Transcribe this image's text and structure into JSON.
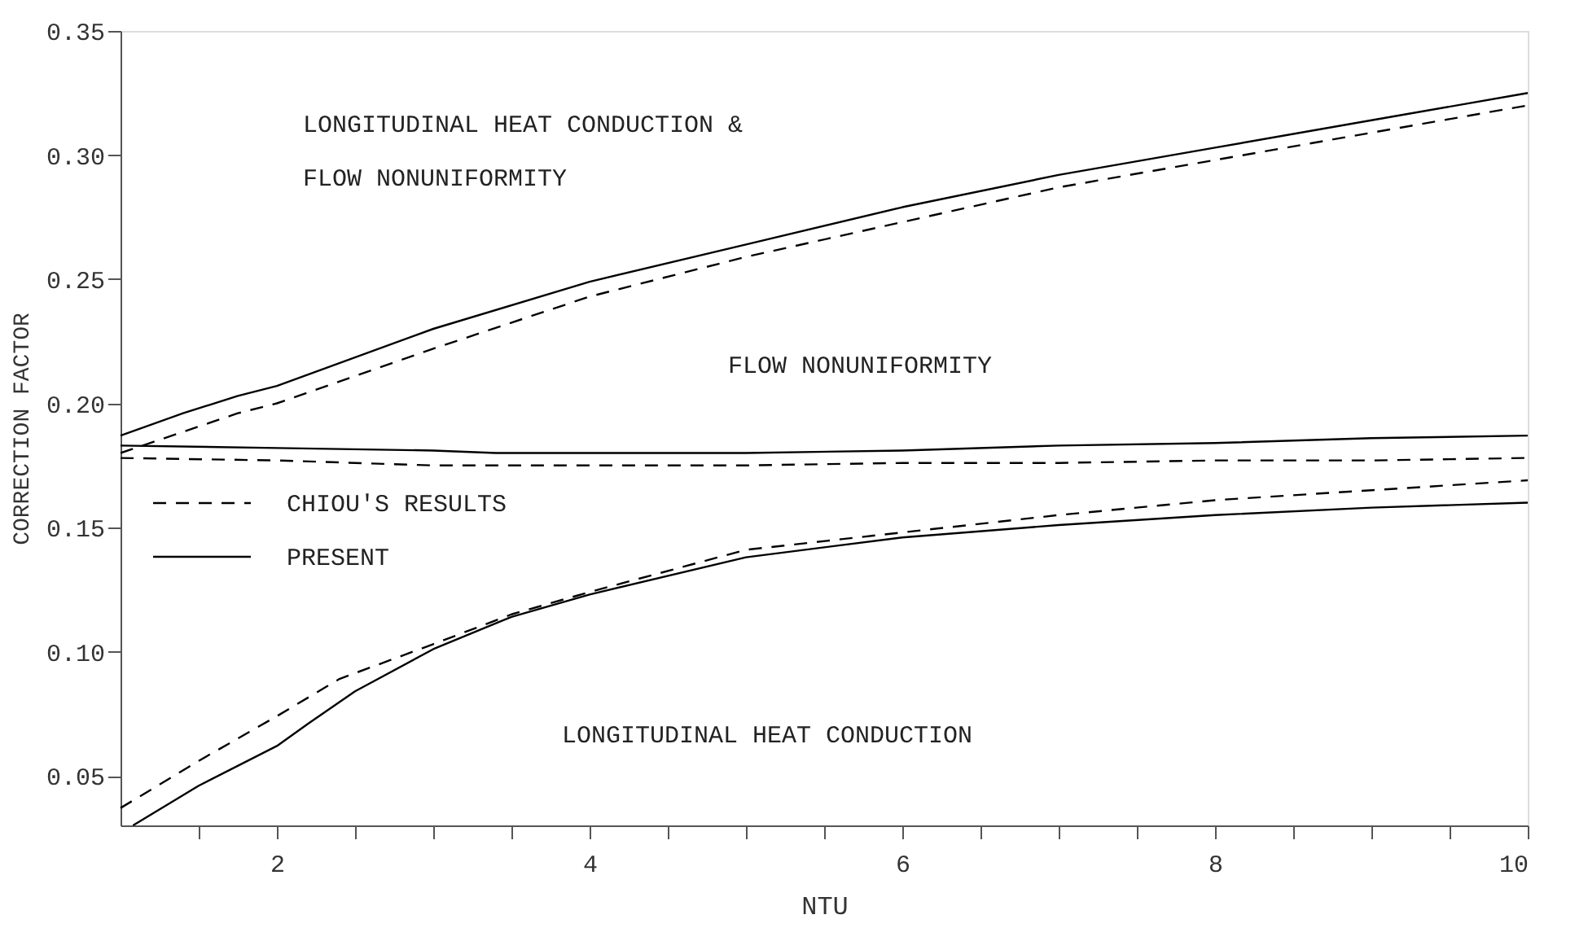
{
  "chart_data": {
    "type": "line",
    "xlabel": "NTU",
    "ylabel": "CORRECTION FACTOR",
    "xlim": [
      1,
      10
    ],
    "ylim": [
      0.03,
      0.35
    ],
    "xticks": [
      {
        "value": 1.5,
        "label": null
      },
      2,
      {
        "value": 2.5,
        "label": null
      },
      {
        "value": 3,
        "label": null
      },
      {
        "value": 3.5,
        "label": null
      },
      4,
      {
        "value": 4.5,
        "label": null
      },
      {
        "value": 5,
        "label": null
      },
      {
        "value": 5.5,
        "label": null
      },
      6,
      {
        "value": 6.5,
        "label": null
      },
      {
        "value": 7,
        "label": null
      },
      {
        "value": 7.5,
        "label": null
      },
      8,
      {
        "value": 8.5,
        "label": null
      },
      {
        "value": 9,
        "label": null
      },
      {
        "value": 9.5,
        "label": null
      },
      10
    ],
    "yticks": [
      {
        "value": 0.05,
        "label": "0.05"
      },
      {
        "value": 0.1,
        "label": "0.10"
      },
      {
        "value": 0.15,
        "label": "0.15"
      },
      {
        "value": 0.2,
        "label": "0.20"
      },
      {
        "value": 0.25,
        "label": "0.25"
      },
      {
        "value": 0.3,
        "label": "0.30"
      },
      {
        "value": 0.35,
        "label": "0.35"
      }
    ],
    "grid": false,
    "legend": "left",
    "marker": "none",
    "series": [
      {
        "name": "PRESENT",
        "color": "#000000",
        "line_style": "solid",
        "x": [
          1,
          1.4,
          1.75,
          2,
          3,
          4,
          5,
          6,
          7,
          8,
          9,
          10
        ],
        "values": [
          0.187,
          0.196,
          0.203,
          0.207,
          0.23,
          0.249,
          0.264,
          0.279,
          0.292,
          0.303,
          0.314,
          0.325
        ]
      },
      {
        "name": "CHIOU'S RESULTS",
        "color": "#000000",
        "line_style": "dashed",
        "x": [
          1,
          1.75,
          2,
          3,
          4,
          5,
          6,
          7,
          8,
          9,
          10
        ],
        "values": [
          0.18,
          0.196,
          0.2,
          0.222,
          0.243,
          0.259,
          0.273,
          0.287,
          0.298,
          0.309,
          0.32
        ]
      },
      {
        "color": "#000000",
        "line_style": "solid",
        "x": [
          1,
          2,
          3,
          3.4,
          4,
          5,
          6,
          7,
          8,
          9,
          10
        ],
        "values": [
          0.183,
          0.182,
          0.181,
          0.18,
          0.18,
          0.18,
          0.181,
          0.183,
          0.184,
          0.186,
          0.187
        ]
      },
      {
        "color": "#000000",
        "line_style": "dashed",
        "x": [
          1,
          2,
          3,
          4,
          5,
          6,
          7,
          8,
          9,
          10
        ],
        "values": [
          0.178,
          0.177,
          0.175,
          0.175,
          0.175,
          0.176,
          0.176,
          0.177,
          0.177,
          0.178
        ]
      },
      {
        "color": "#000000",
        "line_style": "solid",
        "x": [
          1.08,
          1.5,
          2,
          2.2,
          2.5,
          3,
          3.5,
          4,
          5,
          6,
          7,
          8,
          9,
          10
        ],
        "values": [
          0.03,
          0.046,
          0.062,
          0.071,
          0.084,
          0.101,
          0.114,
          0.123,
          0.138,
          0.146,
          0.151,
          0.155,
          0.158,
          0.16
        ]
      },
      {
        "color": "#000000",
        "line_style": "dashed",
        "x": [
          1,
          1.5,
          2,
          2.4,
          3,
          3.5,
          4,
          5,
          6,
          7,
          8,
          9,
          10
        ],
        "values": [
          0.037,
          0.056,
          0.074,
          0.089,
          0.103,
          0.115,
          0.124,
          0.141,
          0.148,
          0.155,
          0.161,
          0.165,
          0.169
        ]
      }
    ],
    "annotations": [
      "LONGITUDINAL HEAT CONDUCTION &",
      "FLOW NONUNIFORMITY",
      "FLOW NONUNIFORMITY",
      "LONGITUDINAL HEAT CONDUCTION"
    ]
  }
}
